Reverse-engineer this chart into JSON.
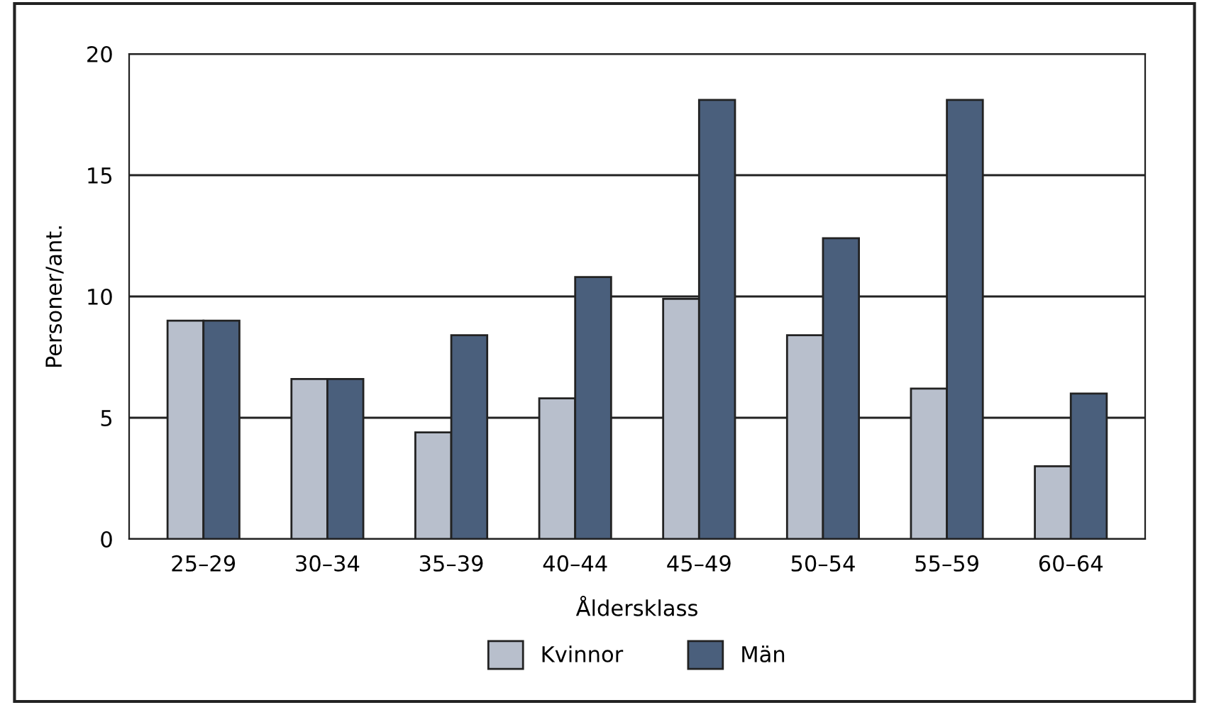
{
  "chart_data": {
    "type": "bar",
    "xlabel": "Åldersklass",
    "ylabel": "Personer/ant.",
    "categories": [
      "25–29",
      "30–34",
      "35–39",
      "40–44",
      "45–49",
      "50–54",
      "55–59",
      "60–64"
    ],
    "series": [
      {
        "name": "Kvinnor",
        "color": "#b8bfcc",
        "values": [
          9.0,
          6.6,
          4.4,
          5.8,
          9.9,
          8.4,
          6.2,
          3.0
        ]
      },
      {
        "name": "Män",
        "color": "#4a5f7c",
        "values": [
          9.0,
          6.6,
          8.4,
          10.8,
          18.1,
          12.4,
          18.1,
          6.0
        ]
      }
    ],
    "ylim": [
      0,
      20
    ],
    "yticks": [
      0,
      5,
      10,
      15,
      20
    ],
    "grid": "y",
    "legend": "bottom"
  }
}
